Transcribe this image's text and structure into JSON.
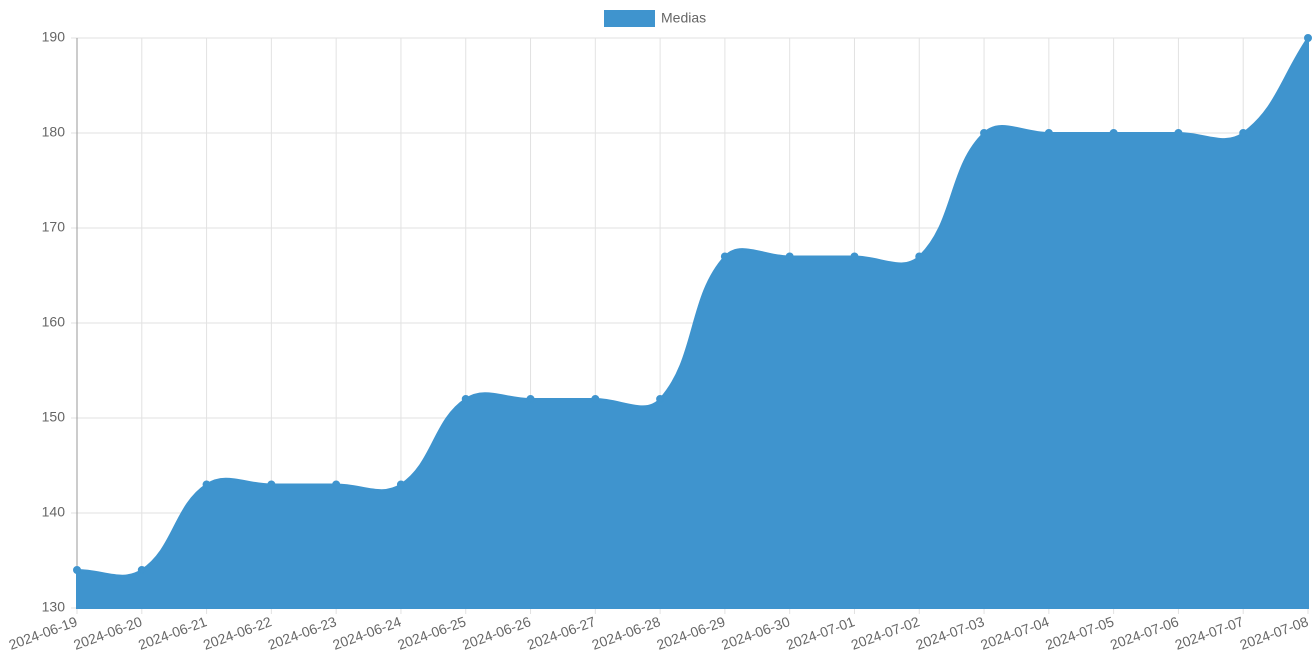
{
  "chart_data": {
    "type": "area",
    "categories": [
      "2024-06-19",
      "2024-06-20",
      "2024-06-21",
      "2024-06-22",
      "2024-06-23",
      "2024-06-24",
      "2024-06-25",
      "2024-06-26",
      "2024-06-27",
      "2024-06-28",
      "2024-06-29",
      "2024-06-30",
      "2024-07-01",
      "2024-07-02",
      "2024-07-03",
      "2024-07-04",
      "2024-07-05",
      "2024-07-06",
      "2024-07-07",
      "2024-07-08"
    ],
    "series": [
      {
        "name": "Medias",
        "color": "#3f94ce",
        "values": [
          134,
          134,
          143,
          143,
          143,
          143,
          152,
          152,
          152,
          152,
          167,
          167,
          167,
          167,
          180,
          180,
          180,
          180,
          180,
          190
        ]
      }
    ],
    "ylim": [
      130,
      190
    ],
    "yticks": [
      130,
      140,
      150,
      160,
      170,
      180,
      190
    ],
    "grid": true,
    "legend": "top"
  }
}
